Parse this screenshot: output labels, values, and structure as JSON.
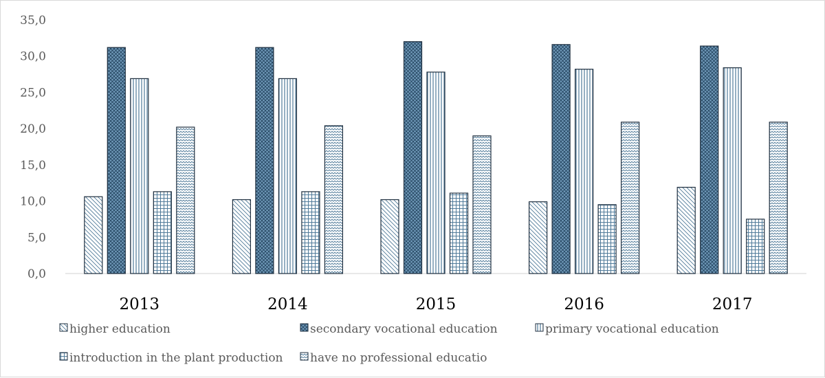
{
  "chart_data": {
    "type": "bar",
    "title": "",
    "xlabel": "",
    "ylabel": "",
    "ylim": [
      0,
      35
    ],
    "ytick_step": 5,
    "ytick_labels": [
      "0,0",
      "5,0",
      "10,0",
      "15,0",
      "20,0",
      "25,0",
      "30,0",
      "35,0"
    ],
    "grid": false,
    "legend_position": "bottom",
    "categories": [
      "2013",
      "2014",
      "2015",
      "2016",
      "2017"
    ],
    "series": [
      {
        "name": "higher education",
        "pattern": "diag-light",
        "values": [
          10.6,
          10.2,
          10.2,
          9.9,
          11.9
        ]
      },
      {
        "name": "secondary vocational education",
        "pattern": "crosshatch-dark",
        "values": [
          31.2,
          31.2,
          32.0,
          31.6,
          31.4
        ]
      },
      {
        "name": "primary vocational education",
        "pattern": "vertical-lines",
        "values": [
          26.9,
          26.9,
          27.8,
          28.2,
          28.4
        ]
      },
      {
        "name": "introduction in the plant production",
        "pattern": "grid",
        "values": [
          11.3,
          11.3,
          11.1,
          9.5,
          7.5
        ]
      },
      {
        "name": "have no professional educatio",
        "pattern": "zigzag",
        "values": [
          20.2,
          20.4,
          19.0,
          20.9,
          20.9
        ]
      }
    ],
    "colors": {
      "outline": "#1f2f3f",
      "pattern_stroke": "#4f7a99",
      "dark_fill": "#6f98b8",
      "axis": "#d9d9d9"
    }
  }
}
